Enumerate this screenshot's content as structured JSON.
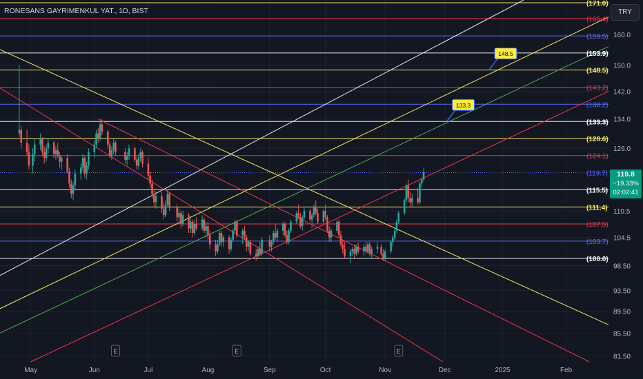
{
  "header": {
    "symbol_title": "RONESANS GAYRIMENKUL YAT., 1D, BIST",
    "currency": "TRY"
  },
  "last_price": {
    "value": "119.8",
    "change_pct": "−19.33%",
    "countdown": "02:02:41"
  },
  "chart_data": {
    "type": "candlestick",
    "y_scale": "log",
    "ylim": [
      80.5,
      172
    ],
    "xlim": [
      "2024-04-15",
      "2025-02-25"
    ],
    "y_ticks": [
      "160.0",
      "150.0",
      "142.0",
      "134.0",
      "126.0",
      "110.5",
      "104.5",
      "98.50",
      "93.50",
      "89.50",
      "85.50",
      "81.50"
    ],
    "x_ticks": [
      {
        "label": "May",
        "date": "2024-05-01"
      },
      {
        "label": "Jun",
        "date": "2024-06-03"
      },
      {
        "label": "Jul",
        "date": "2024-07-01"
      },
      {
        "label": "Aug",
        "date": "2024-08-01"
      },
      {
        "label": "Sep",
        "date": "2024-09-02"
      },
      {
        "label": "Oct",
        "date": "2024-10-01"
      },
      {
        "label": "Nov",
        "date": "2024-11-01"
      },
      {
        "label": "Dec",
        "date": "2024-12-02"
      },
      {
        "label": "2025",
        "date": "2025-01-01"
      },
      {
        "label": "Feb",
        "date": "2025-02-03"
      }
    ],
    "horizontal_levels": [
      {
        "label": "(171.0)",
        "value": 171.0,
        "color": "#f5e663"
      },
      {
        "label": "(165.4)",
        "value": 165.4,
        "color": "#f23645"
      },
      {
        "label": "(159.5)",
        "value": 159.5,
        "color": "#5b6cf5"
      },
      {
        "label": "(153.9)",
        "value": 153.9,
        "color": "#e8e8e8"
      },
      {
        "label": "(148.5)",
        "value": 148.5,
        "color": "#f5e663"
      },
      {
        "label": "(143.2)",
        "value": 143.2,
        "color": "#f23645"
      },
      {
        "label": "(138.2)",
        "value": 138.2,
        "color": "#5b6cf5"
      },
      {
        "label": "(133.3)",
        "value": 133.3,
        "color": "#e8e8e8"
      },
      {
        "label": "(128.6)",
        "value": 128.6,
        "color": "#f5e663"
      },
      {
        "label": "(124.1)",
        "value": 124.1,
        "color": "#f23645"
      },
      {
        "label": "(119.7)",
        "value": 119.7,
        "color": "#5b6cf5",
        "dotted": true
      },
      {
        "label": "(115.5)",
        "value": 115.5,
        "color": "#e8e8e8"
      },
      {
        "label": "(111.4)",
        "value": 111.4,
        "color": "#f5e663"
      },
      {
        "label": "(107.5)",
        "value": 107.5,
        "color": "#f23645"
      },
      {
        "label": "(103.7)",
        "value": 103.7,
        "color": "#5b6cf5"
      },
      {
        "label": "(100.0)",
        "value": 100.0,
        "color": "#e8e8e8"
      }
    ],
    "trend_lines": [
      {
        "color": "#f5e663",
        "from": [
          "2024-04-15",
          155.0
        ],
        "to": [
          "2025-02-25",
          87.0
        ]
      },
      {
        "color": "#f23645",
        "from": [
          "2024-04-15",
          143.0
        ],
        "to": [
          "2024-12-01",
          80.5
        ]
      },
      {
        "color": "#f23645",
        "from": [
          "2024-06-05",
          134.0
        ],
        "to": [
          "2025-02-15",
          80.5
        ]
      },
      {
        "color": "#e8e8e8",
        "from": [
          "2024-04-15",
          96.5
        ],
        "to": [
          "2025-01-12",
          172.0
        ]
      },
      {
        "color": "#f5e663",
        "from": [
          "2024-04-15",
          90.0
        ],
        "to": [
          "2025-02-25",
          166.0
        ]
      },
      {
        "color": "#4caf50",
        "from": [
          "2024-04-15",
          85.5
        ],
        "to": [
          "2025-02-25",
          156.0
        ]
      },
      {
        "color": "#f23645",
        "from": [
          "2024-05-01",
          80.5
        ],
        "to": [
          "2025-02-25",
          142.0
        ]
      }
    ],
    "callouts": [
      {
        "text": "148.5",
        "date": "2024-12-25",
        "value": 148.5
      },
      {
        "text": "133.3",
        "date": "2024-12-03",
        "value": 133.3
      }
    ],
    "earnings_markers": [
      {
        "label": "E",
        "date": "2024-06-14"
      },
      {
        "label": "E",
        "date": "2024-08-16"
      },
      {
        "label": "E",
        "date": "2024-11-08"
      }
    ],
    "candles": [
      [
        "2024-04-25",
        130.0,
        150.0,
        129.0,
        131.0
      ],
      [
        "2024-04-26",
        131.0,
        132.0,
        126.0,
        127.5
      ],
      [
        "2024-04-29",
        127.5,
        131.0,
        124.0,
        125.0
      ],
      [
        "2024-04-30",
        125.0,
        127.0,
        120.5,
        121.5
      ],
      [
        "2024-05-02",
        121.5,
        126.0,
        119.5,
        124.5
      ],
      [
        "2024-05-03",
        124.5,
        128.5,
        122.5,
        127.0
      ],
      [
        "2024-05-06",
        127.0,
        130.0,
        125.5,
        128.5
      ],
      [
        "2024-05-07",
        128.5,
        129.0,
        124.0,
        125.0
      ],
      [
        "2024-05-08",
        125.0,
        126.5,
        122.0,
        123.5
      ],
      [
        "2024-05-09",
        123.5,
        127.0,
        122.5,
        126.0
      ],
      [
        "2024-05-10",
        126.0,
        128.5,
        124.5,
        127.5
      ],
      [
        "2024-05-13",
        127.5,
        128.0,
        123.5,
        124.5
      ],
      [
        "2024-05-14",
        124.5,
        126.5,
        123.0,
        125.5
      ],
      [
        "2024-05-15",
        125.5,
        127.5,
        123.5,
        124.0
      ],
      [
        "2024-05-16",
        124.0,
        125.0,
        121.0,
        122.5
      ],
      [
        "2024-05-17",
        122.5,
        124.0,
        120.5,
        123.5
      ],
      [
        "2024-05-20",
        123.5,
        124.5,
        119.5,
        120.0
      ],
      [
        "2024-05-21",
        120.0,
        121.0,
        116.0,
        117.0
      ],
      [
        "2024-05-22",
        117.0,
        118.0,
        113.5,
        114.5
      ],
      [
        "2024-05-23",
        114.5,
        117.5,
        113.0,
        116.5
      ],
      [
        "2024-05-24",
        116.5,
        120.5,
        115.5,
        119.5
      ],
      [
        "2024-05-27",
        119.5,
        122.0,
        118.0,
        121.0
      ],
      [
        "2024-05-28",
        121.0,
        124.5,
        120.0,
        123.5
      ],
      [
        "2024-05-29",
        123.5,
        124.0,
        118.5,
        119.5
      ],
      [
        "2024-05-30",
        119.5,
        122.5,
        118.0,
        121.5
      ],
      [
        "2024-05-31",
        121.5,
        126.0,
        120.5,
        125.0
      ],
      [
        "2024-06-03",
        125.0,
        128.0,
        123.5,
        127.0
      ],
      [
        "2024-06-04",
        127.0,
        131.0,
        126.0,
        130.0
      ],
      [
        "2024-06-05",
        130.0,
        131.5,
        127.5,
        128.5
      ],
      [
        "2024-06-06",
        128.5,
        133.5,
        128.0,
        132.5
      ],
      [
        "2024-06-07",
        132.5,
        134.0,
        129.5,
        130.5
      ],
      [
        "2024-06-10",
        130.5,
        131.0,
        126.0,
        127.0
      ],
      [
        "2024-06-11",
        127.0,
        128.0,
        123.5,
        124.0
      ],
      [
        "2024-06-12",
        124.0,
        126.5,
        123.0,
        125.5
      ],
      [
        "2024-06-13",
        125.5,
        128.5,
        124.5,
        127.5
      ],
      [
        "2024-06-14",
        127.5,
        128.0,
        124.0,
        125.0
      ],
      [
        "2024-06-19",
        125.0,
        126.0,
        122.0,
        123.0
      ],
      [
        "2024-06-20",
        123.0,
        125.0,
        121.5,
        124.0
      ],
      [
        "2024-06-21",
        124.0,
        127.0,
        123.0,
        126.0
      ],
      [
        "2024-06-24",
        126.0,
        126.5,
        122.5,
        123.0
      ],
      [
        "2024-06-25",
        123.0,
        124.0,
        120.5,
        121.5
      ],
      [
        "2024-06-26",
        121.5,
        124.5,
        120.5,
        123.5
      ],
      [
        "2024-06-27",
        123.5,
        126.0,
        122.5,
        125.0
      ],
      [
        "2024-06-28",
        125.0,
        125.5,
        121.0,
        122.0
      ],
      [
        "2024-07-01",
        122.0,
        123.5,
        118.0,
        119.0
      ],
      [
        "2024-07-02",
        119.0,
        120.0,
        116.0,
        117.0
      ],
      [
        "2024-07-03",
        117.0,
        118.0,
        113.5,
        114.5
      ],
      [
        "2024-07-04",
        114.5,
        115.5,
        111.5,
        112.5
      ],
      [
        "2024-07-05",
        112.5,
        115.0,
        111.0,
        114.0
      ],
      [
        "2024-07-08",
        114.0,
        115.0,
        110.0,
        111.0
      ],
      [
        "2024-07-09",
        111.0,
        112.5,
        108.5,
        109.5
      ],
      [
        "2024-07-10",
        109.5,
        113.0,
        109.0,
        112.0
      ],
      [
        "2024-07-11",
        112.0,
        115.5,
        111.5,
        114.5
      ],
      [
        "2024-07-12",
        114.5,
        115.0,
        110.5,
        111.5
      ],
      [
        "2024-07-16",
        111.5,
        112.0,
        108.0,
        109.0
      ],
      [
        "2024-07-17",
        109.0,
        111.0,
        107.5,
        110.0
      ],
      [
        "2024-07-18",
        110.0,
        110.5,
        106.5,
        107.5
      ],
      [
        "2024-07-19",
        107.5,
        110.5,
        107.0,
        109.5
      ],
      [
        "2024-07-22",
        109.5,
        110.0,
        105.5,
        106.5
      ],
      [
        "2024-07-23",
        106.5,
        109.0,
        105.5,
        108.0
      ],
      [
        "2024-07-24",
        108.0,
        108.5,
        104.5,
        105.5
      ],
      [
        "2024-07-25",
        105.5,
        108.5,
        105.0,
        107.5
      ],
      [
        "2024-07-26",
        107.5,
        109.0,
        106.0,
        106.5
      ],
      [
        "2024-07-29",
        106.5,
        109.5,
        106.0,
        108.5
      ],
      [
        "2024-07-30",
        108.5,
        109.0,
        105.5,
        106.0
      ],
      [
        "2024-07-31",
        106.0,
        108.0,
        104.5,
        107.0
      ],
      [
        "2024-08-01",
        107.0,
        108.0,
        104.0,
        105.0
      ],
      [
        "2024-08-02",
        105.0,
        106.0,
        102.0,
        103.0
      ],
      [
        "2024-08-05",
        103.0,
        104.0,
        100.5,
        101.5
      ],
      [
        "2024-08-06",
        101.5,
        104.0,
        101.0,
        103.0
      ],
      [
        "2024-08-07",
        103.0,
        106.0,
        102.5,
        105.5
      ],
      [
        "2024-08-08",
        105.5,
        106.0,
        102.5,
        103.5
      ],
      [
        "2024-08-09",
        103.5,
        105.0,
        102.5,
        104.5
      ],
      [
        "2024-08-12",
        104.5,
        105.0,
        101.0,
        102.0
      ],
      [
        "2024-08-13",
        102.0,
        104.5,
        101.5,
        104.0
      ],
      [
        "2024-08-14",
        104.0,
        106.5,
        103.5,
        106.0
      ],
      [
        "2024-08-15",
        106.0,
        108.5,
        105.5,
        108.0
      ],
      [
        "2024-08-16",
        108.0,
        108.5,
        104.5,
        105.0
      ],
      [
        "2024-08-19",
        105.0,
        106.5,
        103.0,
        106.0
      ],
      [
        "2024-08-20",
        106.0,
        107.0,
        104.0,
        104.5
      ],
      [
        "2024-08-21",
        104.5,
        105.0,
        101.5,
        102.5
      ],
      [
        "2024-08-22",
        102.5,
        104.0,
        101.5,
        103.5
      ],
      [
        "2024-08-23",
        103.5,
        104.0,
        100.5,
        101.0
      ],
      [
        "2024-08-26",
        101.0,
        102.0,
        99.5,
        100.5
      ],
      [
        "2024-08-27",
        100.5,
        102.5,
        100.0,
        102.0
      ],
      [
        "2024-08-28",
        102.0,
        103.5,
        100.5,
        101.0
      ],
      [
        "2024-08-29",
        101.0,
        104.5,
        100.5,
        104.0
      ],
      [
        "2024-09-02",
        104.0,
        105.0,
        101.5,
        102.5
      ],
      [
        "2024-09-03",
        102.5,
        104.0,
        101.5,
        103.5
      ],
      [
        "2024-09-04",
        103.5,
        106.0,
        103.0,
        105.5
      ],
      [
        "2024-09-05",
        105.5,
        107.5,
        104.0,
        104.5
      ],
      [
        "2024-09-06",
        104.5,
        106.5,
        103.5,
        106.0
      ],
      [
        "2024-09-09",
        106.0,
        108.0,
        105.0,
        107.5
      ],
      [
        "2024-09-10",
        107.5,
        108.0,
        104.5,
        105.0
      ],
      [
        "2024-09-11",
        105.0,
        106.0,
        103.0,
        103.5
      ],
      [
        "2024-09-12",
        103.5,
        106.5,
        103.0,
        106.0
      ],
      [
        "2024-09-13",
        106.0,
        108.5,
        105.5,
        108.0
      ],
      [
        "2024-09-16",
        108.0,
        110.5,
        107.5,
        110.0
      ],
      [
        "2024-09-17",
        110.0,
        112.0,
        108.5,
        109.0
      ],
      [
        "2024-09-18",
        109.0,
        110.0,
        106.5,
        107.0
      ],
      [
        "2024-09-19",
        107.0,
        109.5,
        106.0,
        109.0
      ],
      [
        "2024-09-20",
        109.0,
        111.5,
        108.5,
        110.5
      ],
      [
        "2024-09-23",
        110.5,
        111.0,
        108.0,
        108.5
      ],
      [
        "2024-09-24",
        108.5,
        110.0,
        106.5,
        109.5
      ],
      [
        "2024-09-25",
        109.5,
        112.0,
        109.0,
        111.5
      ],
      [
        "2024-09-26",
        111.5,
        113.0,
        109.5,
        110.0
      ],
      [
        "2024-09-27",
        110.0,
        111.0,
        107.5,
        108.0
      ],
      [
        "2024-09-30",
        108.0,
        111.0,
        107.5,
        110.5
      ],
      [
        "2024-10-01",
        110.5,
        112.0,
        108.5,
        109.0
      ],
      [
        "2024-10-02",
        109.0,
        109.5,
        105.5,
        106.0
      ],
      [
        "2024-10-03",
        106.0,
        107.0,
        103.5,
        104.5
      ],
      [
        "2024-10-04",
        104.5,
        106.5,
        103.5,
        106.0
      ],
      [
        "2024-10-07",
        106.0,
        108.5,
        105.5,
        108.0
      ],
      [
        "2024-10-08",
        108.0,
        108.5,
        104.5,
        105.0
      ],
      [
        "2024-10-09",
        105.0,
        106.0,
        102.5,
        103.0
      ],
      [
        "2024-10-10",
        103.0,
        104.0,
        101.0,
        102.0
      ],
      [
        "2024-10-11",
        102.0,
        103.5,
        100.0,
        100.5
      ],
      [
        "2024-10-14",
        100.5,
        102.0,
        99.0,
        101.5
      ],
      [
        "2024-10-15",
        101.5,
        102.5,
        100.5,
        102.0
      ],
      [
        "2024-10-16",
        102.0,
        103.0,
        100.0,
        101.0
      ],
      [
        "2024-10-17",
        101.0,
        103.0,
        100.5,
        102.5
      ],
      [
        "2024-10-18",
        102.5,
        103.5,
        101.0,
        101.5
      ],
      [
        "2024-10-21",
        101.5,
        103.0,
        100.5,
        102.5
      ],
      [
        "2024-10-22",
        102.5,
        103.5,
        101.0,
        101.5
      ],
      [
        "2024-10-23",
        101.5,
        103.5,
        101.0,
        103.0
      ],
      [
        "2024-10-24",
        103.0,
        103.5,
        100.5,
        101.0
      ],
      [
        "2024-10-25",
        101.0,
        102.5,
        100.0,
        102.0
      ],
      [
        "2024-10-28",
        102.0,
        103.5,
        101.0,
        102.5
      ],
      [
        "2024-10-30",
        102.5,
        103.0,
        100.5,
        101.0
      ],
      [
        "2024-10-31",
        101.0,
        102.0,
        99.5,
        100.0
      ],
      [
        "2024-11-01",
        100.0,
        102.0,
        99.5,
        101.5
      ],
      [
        "2024-11-04",
        101.5,
        104.0,
        101.0,
        103.5
      ],
      [
        "2024-11-05",
        103.5,
        105.0,
        102.5,
        104.5
      ],
      [
        "2024-11-06",
        104.5,
        106.5,
        104.0,
        106.0
      ],
      [
        "2024-11-07",
        106.0,
        108.5,
        105.5,
        108.0
      ],
      [
        "2024-11-08",
        108.0,
        110.5,
        107.5,
        110.0
      ],
      [
        "2024-11-11",
        110.0,
        113.5,
        109.5,
        113.0
      ],
      [
        "2024-11-12",
        113.0,
        117.0,
        112.5,
        116.5
      ],
      [
        "2024-11-13",
        116.5,
        118.0,
        112.5,
        113.5
      ],
      [
        "2024-11-14",
        113.5,
        115.0,
        111.5,
        112.5
      ],
      [
        "2024-11-15",
        112.5,
        114.5,
        111.5,
        113.5
      ],
      [
        "2024-11-18",
        113.5,
        116.0,
        112.0,
        112.5
      ],
      [
        "2024-11-19",
        112.5,
        117.5,
        112.0,
        117.0
      ],
      [
        "2024-11-20",
        117.0,
        118.5,
        116.0,
        118.0
      ],
      [
        "2024-11-21",
        118.0,
        121.0,
        117.5,
        119.8
      ]
    ]
  }
}
